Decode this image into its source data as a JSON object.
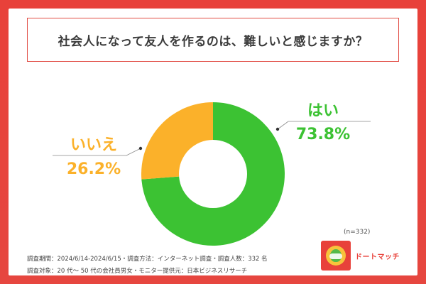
{
  "title": "社会人になって友人を作るのは、難しいと感じますか？",
  "chart_data": {
    "type": "pie",
    "variant": "donut",
    "categories": [
      "はい",
      "いいえ"
    ],
    "values": [
      73.8,
      26.2
    ],
    "unit": "%",
    "value_labels": [
      "73.8%",
      "26.2%"
    ],
    "colors": [
      "#3cc233",
      "#fbb12a"
    ],
    "start": "12 o'clock, clockwise"
  },
  "sample_size": "(n=332)",
  "footnotes": [
    "調査期間：2024/6/14-2024/6/15・調査方法：インターネット調査・調査人数：332 名",
    "調査対象：20 代～ 50 代の会社員男女・モニター提供元：日本ビジネスリサーチ"
  ],
  "logo": {
    "text": "ドートマッチ",
    "accent": "#e8413a"
  },
  "colors": {
    "frame": "#e8413a",
    "leader": "#888888"
  }
}
